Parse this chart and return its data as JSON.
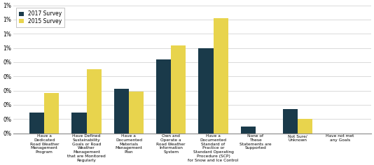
{
  "categories": [
    "Have a\nDedicated\nRoad Weather\nManagement\nProgram",
    "Have Defined\nSustainability\nGoals or Road\nWeather\nManagement\nthat are Monitored\nRegularly",
    "Have a\nDocumented\nMaterials\nManagement\nPlan",
    "Own and\nOperate a\nRoad Weather\nInformation\nSystem",
    "Have a\nDocumented\nStandard of\nPractice or\nStandard Operating\nProcedure (SCP)\nfor Snow and Ice Control",
    "None of\nThese\nStatements are\nSupported",
    "Not Sure/\nUnknown",
    "Have not met\nany Goals"
  ],
  "values_2017": [
    0.0013,
    0.0013,
    0.0028,
    0.0046,
    0.0053,
    0.0004,
    0.0015,
    0.0
  ],
  "values_2015": [
    0.0025,
    0.004,
    0.0026,
    0.0055,
    0.0072,
    0.0,
    0.0009,
    0.0
  ],
  "color_2017": "#1a3a4a",
  "color_2015": "#e8d44d",
  "legend_2017": "2017 Survey",
  "legend_2015": "2015 Survey",
  "ylim": [
    0,
    0.008
  ],
  "ytick_count": 10,
  "background_color": "#ffffff",
  "grid_color": "#cccccc",
  "bar_width": 0.35
}
